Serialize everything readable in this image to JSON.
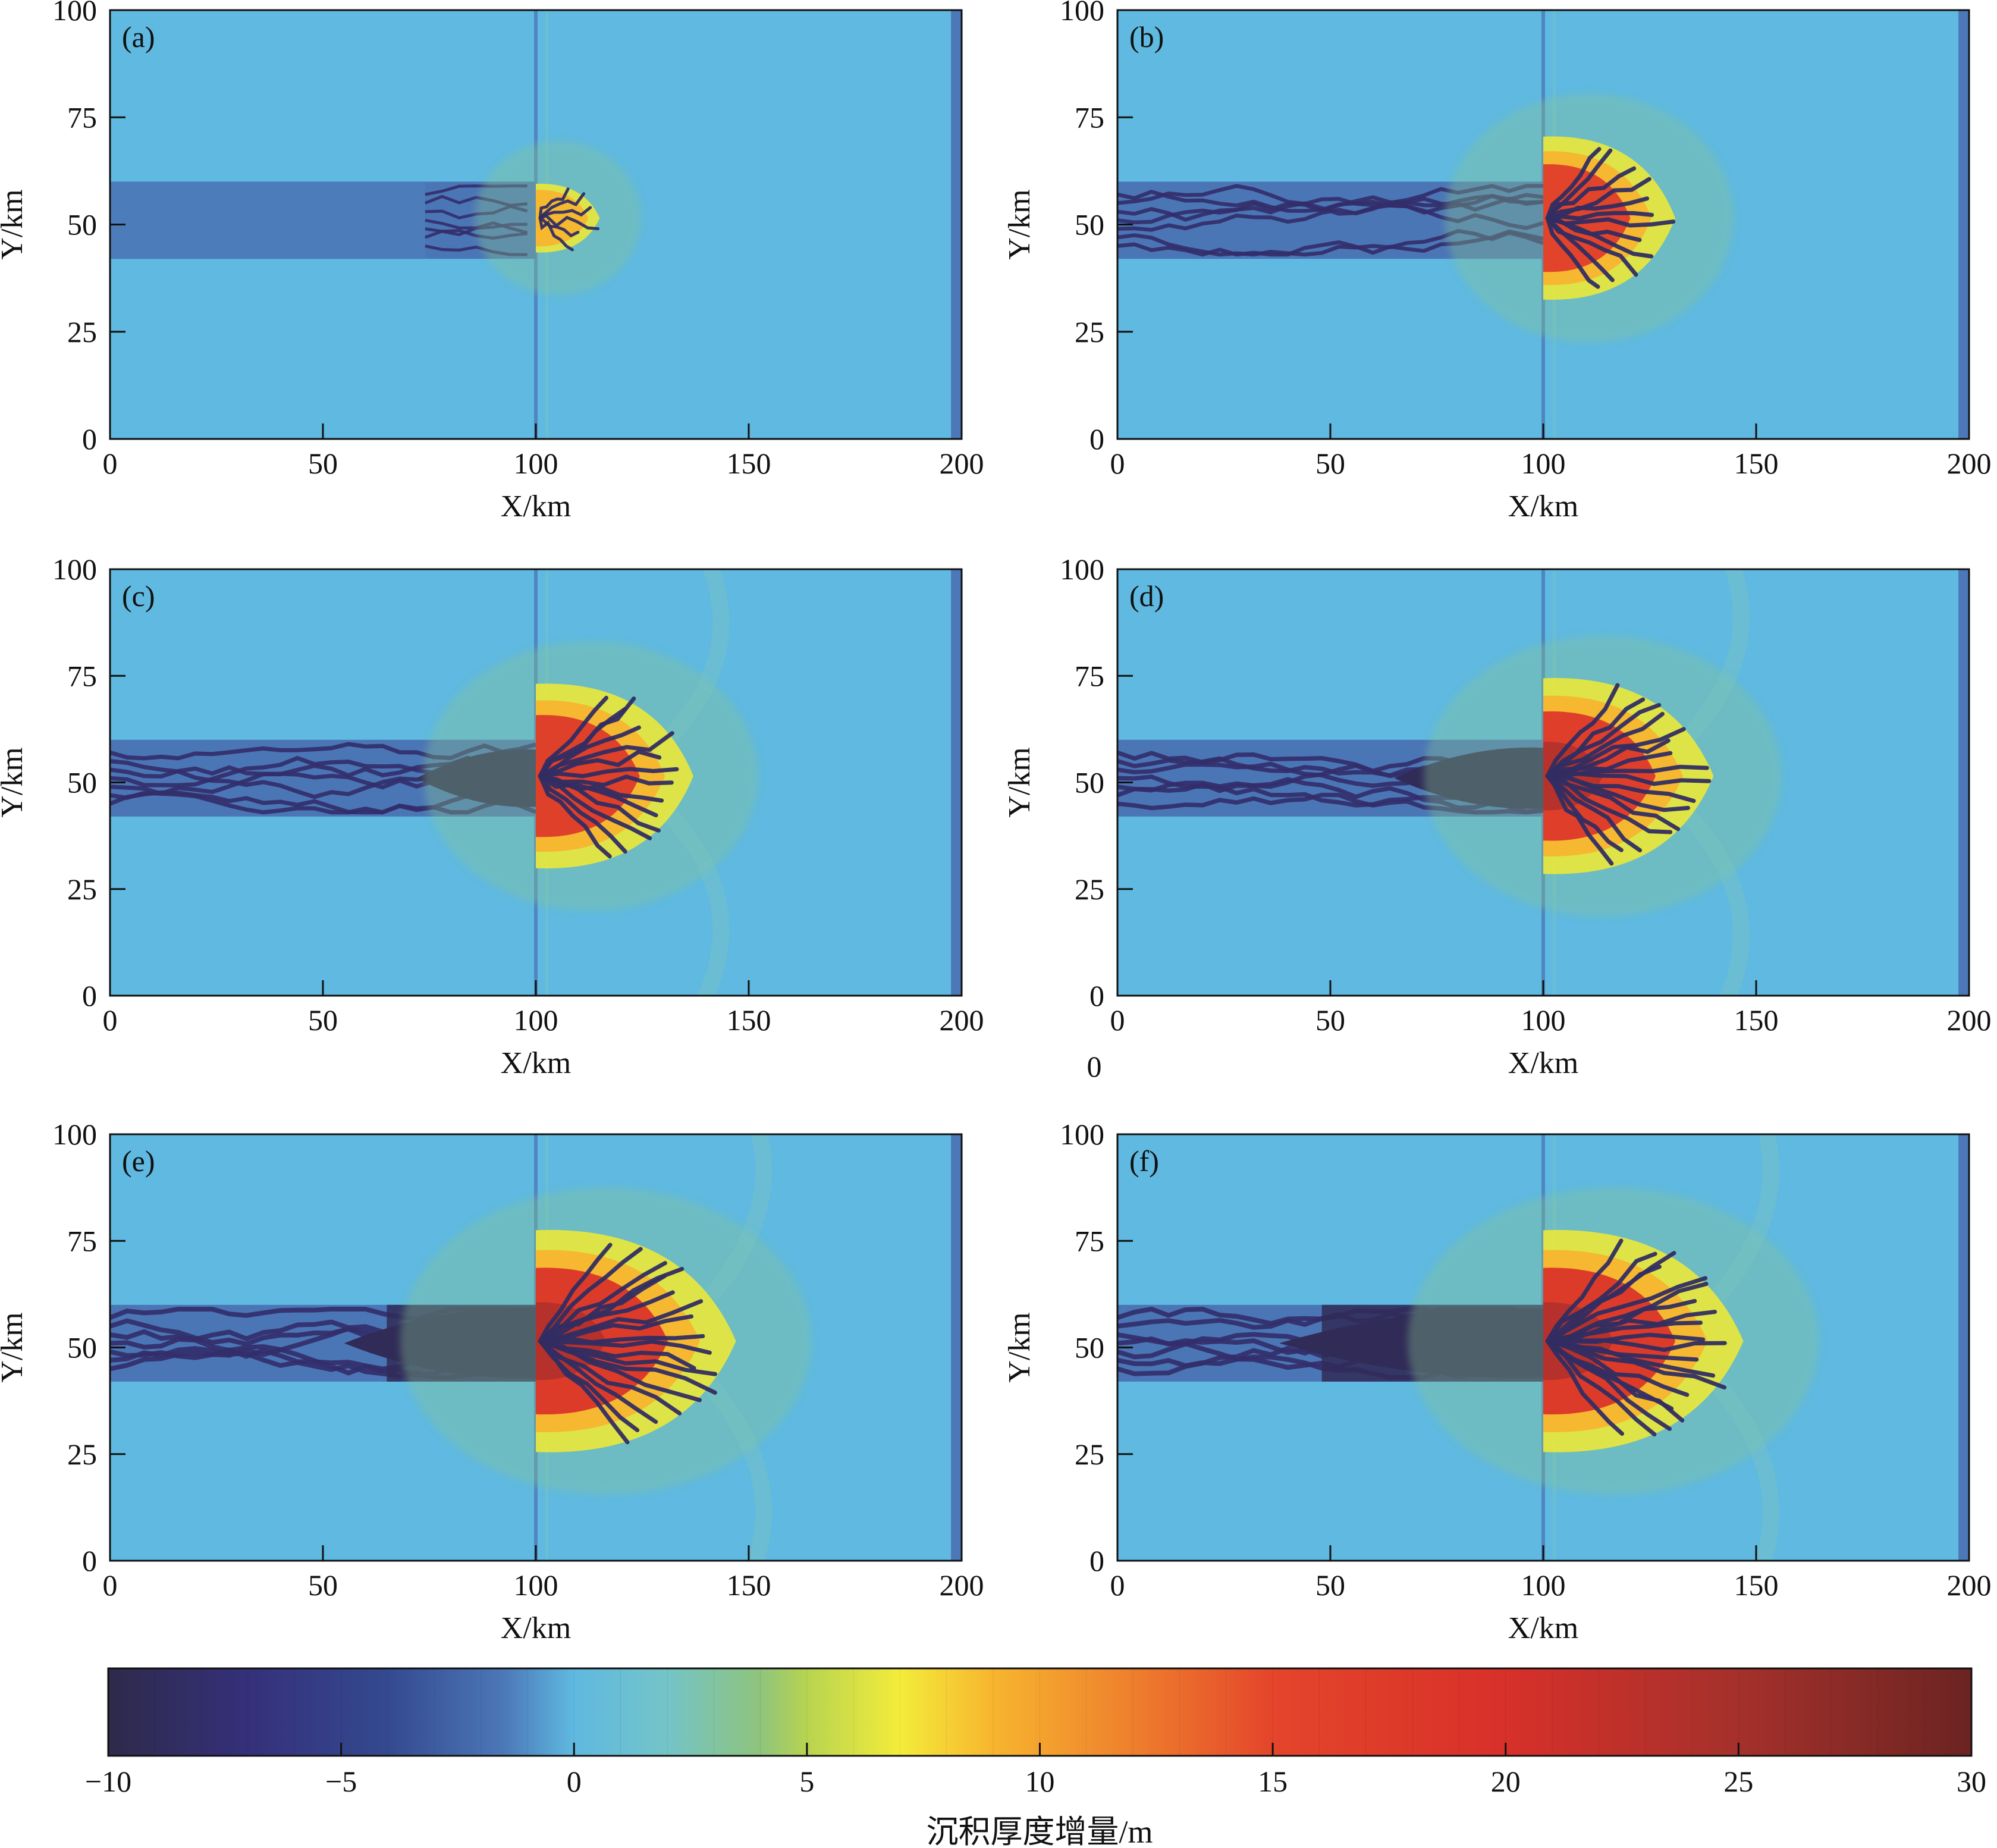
{
  "chart_data": {
    "type": "heatmap",
    "background_color": "#5fb9e0",
    "panels": [
      {
        "label": "(a)",
        "delta_front_x": 115,
        "channel_extent_x": 100
      },
      {
        "label": "(b)",
        "delta_front_x": 131,
        "channel_extent_x": 100
      },
      {
        "label": "(c)",
        "delta_front_x": 137,
        "channel_extent_x": 100
      },
      {
        "label": "(d)",
        "delta_front_x": 140,
        "channel_extent_x": 100
      },
      {
        "label": "(e)",
        "delta_front_x": 147,
        "channel_extent_x": 100
      },
      {
        "label": "(f)",
        "delta_front_x": 147,
        "channel_extent_x": 100
      }
    ],
    "xlabel": "X/km",
    "ylabel": "Y/km",
    "xlim": [
      0,
      200
    ],
    "ylim": [
      0,
      100
    ],
    "x_ticks": [
      "0",
      "50",
      "100",
      "150",
      "200"
    ],
    "y_ticks": [
      "0",
      "25",
      "50",
      "75",
      "100"
    ],
    "channel_y_range": [
      42,
      60
    ],
    "stray_label": "0",
    "colorbar": {
      "title": "沉积厚度增量/m",
      "range": [
        -10,
        30
      ],
      "ticks": [
        "−10",
        "−5",
        "0",
        "5",
        "10",
        "15",
        "20",
        "25",
        "30"
      ],
      "stops": [
        {
          "v": -10,
          "color": "#2e2a4a"
        },
        {
          "v": -7,
          "color": "#35307a"
        },
        {
          "v": -4,
          "color": "#34498f"
        },
        {
          "v": -1.5,
          "color": "#4c78b8"
        },
        {
          "v": 0,
          "color": "#5fb9e0"
        },
        {
          "v": 2,
          "color": "#74c4c8"
        },
        {
          "v": 4,
          "color": "#8fc47c"
        },
        {
          "v": 5,
          "color": "#b7d450"
        },
        {
          "v": 7,
          "color": "#f4ec3a"
        },
        {
          "v": 9,
          "color": "#f7b52f"
        },
        {
          "v": 12,
          "color": "#ee7f2d"
        },
        {
          "v": 15,
          "color": "#e4452b"
        },
        {
          "v": 20,
          "color": "#d8302a"
        },
        {
          "v": 25,
          "color": "#a5302b"
        },
        {
          "v": 30,
          "color": "#6b2422"
        }
      ]
    }
  }
}
